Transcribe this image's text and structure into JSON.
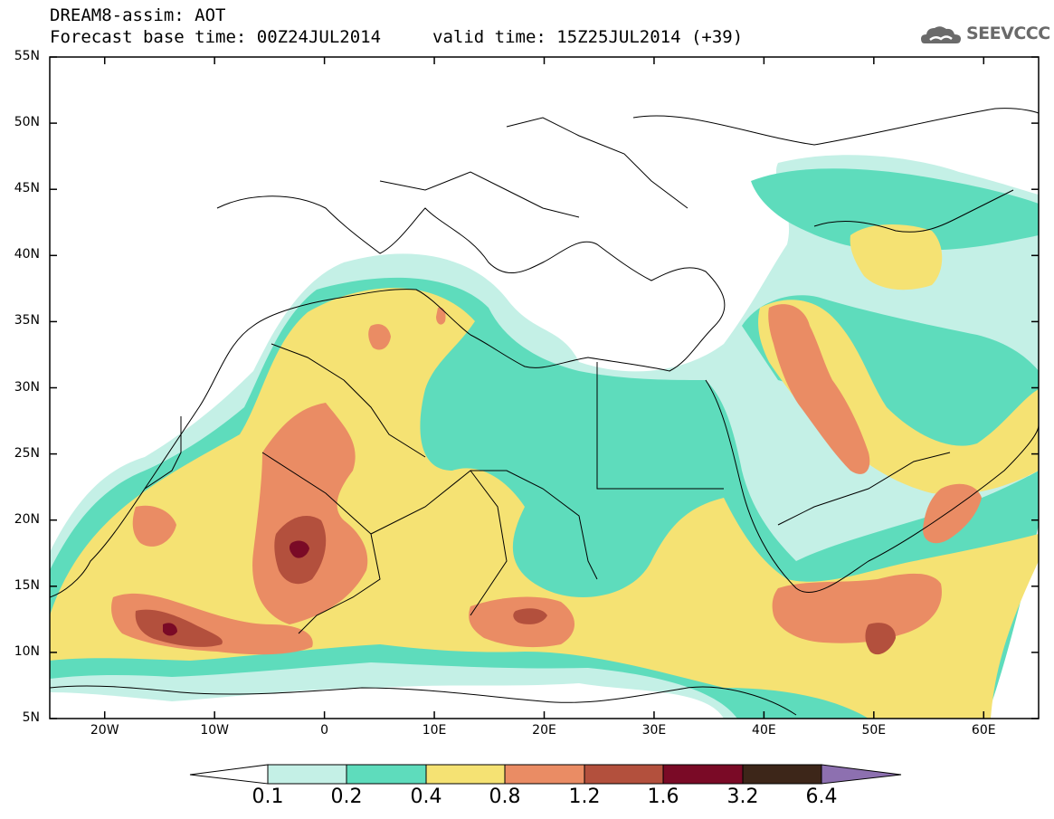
{
  "title": {
    "line1": "DREAM8-assim: AOT",
    "base_time": "Forecast base time: 00Z24JUL2014",
    "valid_time": "valid time: 15Z25JUL2014 (+39)"
  },
  "logo": {
    "text": "SEEVCCC",
    "icon": "cloud-icon"
  },
  "map": {
    "lon_range": [
      -25,
      65
    ],
    "lat_range": [
      5,
      55
    ],
    "lat_labels": [
      "55N",
      "50N",
      "45N",
      "40N",
      "35N",
      "30N",
      "25N",
      "20N",
      "15N",
      "10N",
      "5N"
    ],
    "lon_labels": [
      "20W",
      "10W",
      "0",
      "10E",
      "20E",
      "30E",
      "40E",
      "50E",
      "60E"
    ]
  },
  "colorbar": {
    "labels": [
      "0.1",
      "0.2",
      "0.4",
      "0.8",
      "1.2",
      "1.6",
      "3.2",
      "6.4"
    ],
    "colors": {
      "c1": "#c4f0e6",
      "c2": "#5edcbc",
      "c3": "#f5e273",
      "c4": "#ea8c64",
      "c5": "#b3503d",
      "c6": "#7a0a26",
      "c7": "#3d2619",
      "c8": "#8d70b0"
    }
  }
}
